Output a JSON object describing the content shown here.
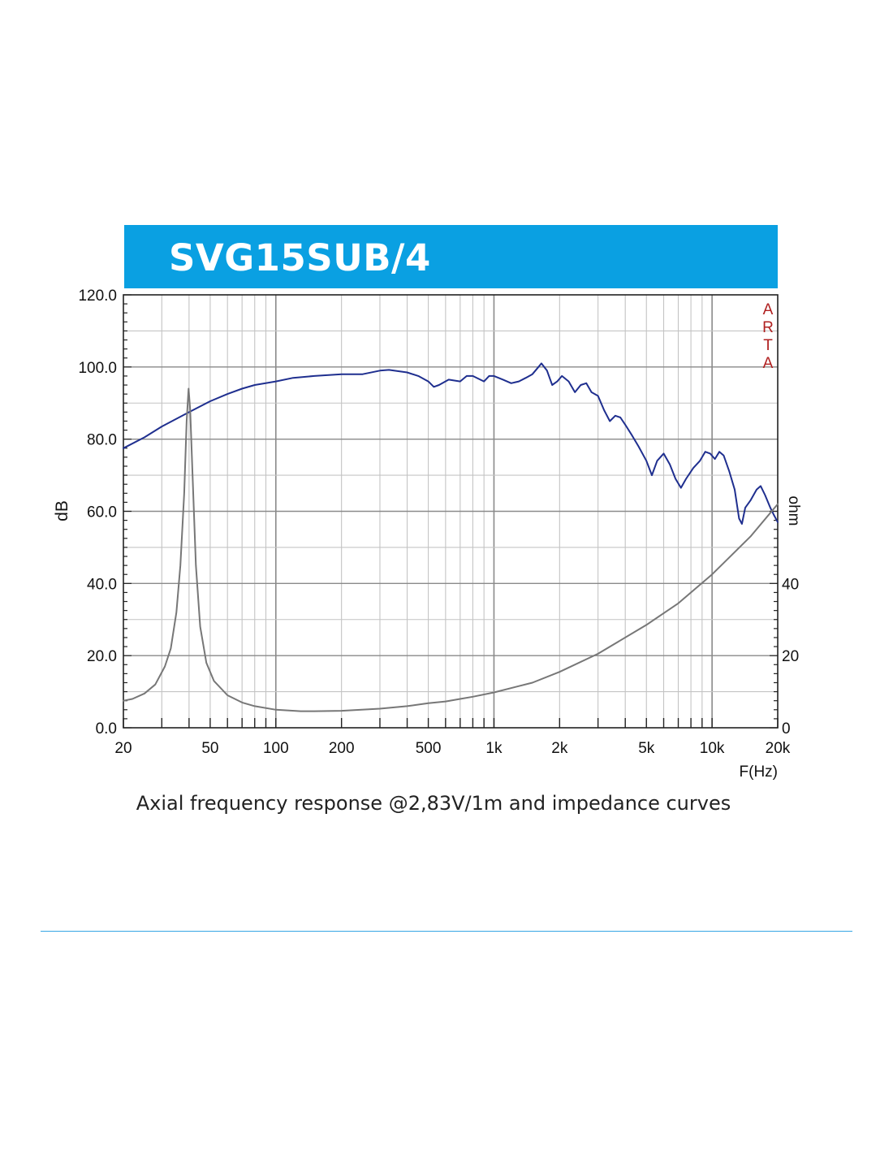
{
  "banner": {
    "title": "SVG15SUB/4",
    "color": "#0aa0e2"
  },
  "caption": "Axial frequency response @2,83V/1m and impedance curves",
  "chart_data": {
    "type": "line",
    "x_scale": "log",
    "xlim": [
      20,
      20000
    ],
    "x_ticks": [
      20,
      50,
      100,
      200,
      500,
      1000,
      2000,
      5000,
      10000,
      20000
    ],
    "x_tick_labels": [
      "20",
      "50",
      "100",
      "200",
      "500",
      "1k",
      "2k",
      "5k",
      "10k",
      "20k"
    ],
    "xlabel": "F(Hz)",
    "ylabel_left": "dB",
    "ylim_left": [
      0,
      120
    ],
    "y_left_ticks": [
      0,
      20,
      40,
      60,
      80,
      100,
      120
    ],
    "y_left_tick_labels": [
      "0.0",
      "20.0",
      "40.0",
      "60.0",
      "80.0",
      "100.0",
      "120.0"
    ],
    "ylabel_right": "ohm",
    "ylim_right": [
      0,
      120
    ],
    "y_right_ticks": [
      0,
      20,
      40
    ],
    "y_right_tick_labels": [
      "0",
      "20",
      "40"
    ],
    "watermark": [
      "A",
      "R",
      "T",
      "A"
    ],
    "grid": true,
    "series": [
      {
        "color": "#1f2f8f",
        "axis": "left",
        "points": [
          [
            20,
            77.5
          ],
          [
            25,
            80.5
          ],
          [
            30,
            83.5
          ],
          [
            40,
            87.5
          ],
          [
            50,
            90.5
          ],
          [
            60,
            92.5
          ],
          [
            70,
            94
          ],
          [
            80,
            95
          ],
          [
            100,
            96
          ],
          [
            120,
            97
          ],
          [
            150,
            97.5
          ],
          [
            200,
            98
          ],
          [
            250,
            98
          ],
          [
            300,
            99
          ],
          [
            330,
            99.2
          ],
          [
            400,
            98.5
          ],
          [
            450,
            97.5
          ],
          [
            500,
            96
          ],
          [
            530,
            94.5
          ],
          [
            560,
            95
          ],
          [
            620,
            96.5
          ],
          [
            700,
            96
          ],
          [
            750,
            97.5
          ],
          [
            800,
            97.5
          ],
          [
            900,
            96
          ],
          [
            950,
            97.5
          ],
          [
            1000,
            97.5
          ],
          [
            1100,
            96.5
          ],
          [
            1200,
            95.5
          ],
          [
            1300,
            96
          ],
          [
            1400,
            97
          ],
          [
            1500,
            98
          ],
          [
            1600,
            100
          ],
          [
            1650,
            101
          ],
          [
            1750,
            99
          ],
          [
            1850,
            95
          ],
          [
            1950,
            96
          ],
          [
            2050,
            97.5
          ],
          [
            2200,
            96
          ],
          [
            2350,
            93
          ],
          [
            2500,
            95
          ],
          [
            2650,
            95.5
          ],
          [
            2800,
            93
          ],
          [
            3000,
            92
          ],
          [
            3200,
            88
          ],
          [
            3400,
            85
          ],
          [
            3600,
            86.5
          ],
          [
            3800,
            86
          ],
          [
            4000,
            84
          ],
          [
            4300,
            81
          ],
          [
            4600,
            78
          ],
          [
            5000,
            74
          ],
          [
            5300,
            70
          ],
          [
            5600,
            74
          ],
          [
            6000,
            76
          ],
          [
            6400,
            73
          ],
          [
            6800,
            69
          ],
          [
            7200,
            66.5
          ],
          [
            7600,
            69
          ],
          [
            8200,
            72
          ],
          [
            8800,
            74
          ],
          [
            9300,
            76.5
          ],
          [
            9800,
            76
          ],
          [
            10300,
            74.5
          ],
          [
            10800,
            76.5
          ],
          [
            11300,
            75.5
          ],
          [
            12000,
            71
          ],
          [
            12700,
            66
          ],
          [
            13300,
            58
          ],
          [
            13700,
            56.5
          ],
          [
            14200,
            61
          ],
          [
            15000,
            63
          ],
          [
            16000,
            66
          ],
          [
            16700,
            67
          ],
          [
            17500,
            64.5
          ],
          [
            18500,
            61
          ],
          [
            19200,
            59
          ],
          [
            20000,
            57
          ]
        ]
      },
      {
        "color": "#777777",
        "axis": "right",
        "points": [
          [
            20,
            7.5
          ],
          [
            22,
            8
          ],
          [
            25,
            9.5
          ],
          [
            28,
            12
          ],
          [
            31,
            17
          ],
          [
            33,
            22
          ],
          [
            35,
            32
          ],
          [
            36.5,
            45
          ],
          [
            38,
            65
          ],
          [
            39,
            85
          ],
          [
            39.8,
            94
          ],
          [
            40.5,
            88
          ],
          [
            41.5,
            70
          ],
          [
            43,
            45
          ],
          [
            45,
            28
          ],
          [
            48,
            18
          ],
          [
            52,
            13
          ],
          [
            60,
            9
          ],
          [
            70,
            7
          ],
          [
            80,
            6
          ],
          [
            100,
            5
          ],
          [
            130,
            4.6
          ],
          [
            150,
            4.6
          ],
          [
            200,
            4.7
          ],
          [
            300,
            5.3
          ],
          [
            400,
            6
          ],
          [
            500,
            6.8
          ],
          [
            600,
            7.3
          ],
          [
            700,
            8
          ],
          [
            800,
            8.6
          ],
          [
            1000,
            9.8
          ],
          [
            1500,
            12.5
          ],
          [
            2000,
            15.5
          ],
          [
            3000,
            20.5
          ],
          [
            5000,
            28.5
          ],
          [
            7000,
            34.5
          ],
          [
            10000,
            42.5
          ],
          [
            15000,
            53
          ],
          [
            20000,
            62
          ]
        ]
      }
    ]
  }
}
